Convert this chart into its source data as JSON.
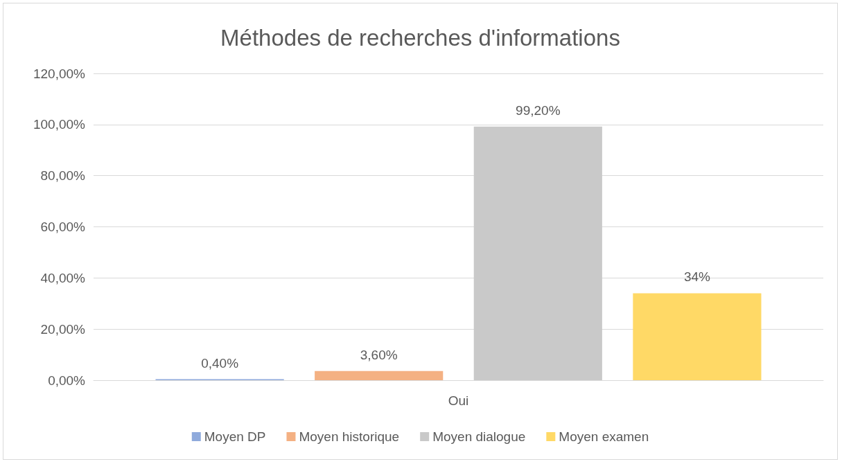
{
  "chart_data": {
    "type": "bar",
    "title": "Méthodes de recherches d'informations",
    "categories": [
      "Oui"
    ],
    "series": [
      {
        "name": "Moyen DP",
        "color": "#8faadc",
        "values": [
          0.4
        ],
        "value_labels": [
          "0,40%"
        ]
      },
      {
        "name": "Moyen historique",
        "color": "#f4b183",
        "values": [
          3.6
        ],
        "value_labels": [
          "3,60%"
        ]
      },
      {
        "name": "Moyen dialogue",
        "color": "#c9c9c9",
        "values": [
          99.2
        ],
        "value_labels": [
          "99,20%"
        ]
      },
      {
        "name": "Moyen examen",
        "color": "#ffd966",
        "values": [
          34
        ],
        "value_labels": [
          "34%"
        ]
      }
    ],
    "ylim": [
      0,
      120
    ],
    "yticks": [
      {
        "value": 0,
        "label": "0,00%"
      },
      {
        "value": 20,
        "label": "20,00%"
      },
      {
        "value": 40,
        "label": "40,00%"
      },
      {
        "value": 60,
        "label": "60,00%"
      },
      {
        "value": 80,
        "label": "80,00%"
      },
      {
        "value": 100,
        "label": "100,00%"
      },
      {
        "value": 120,
        "label": "120,00%"
      }
    ],
    "grid": "y",
    "legend": "bottom"
  }
}
